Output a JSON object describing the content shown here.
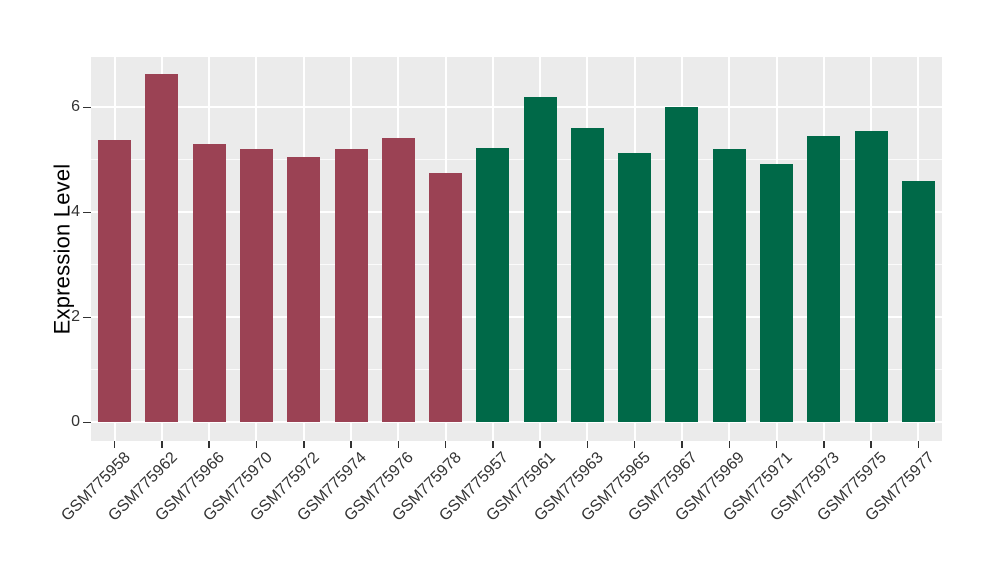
{
  "chart_data": {
    "type": "bar",
    "title": "",
    "xlabel": "",
    "ylabel": "Expression Level",
    "categories": [
      "GSM775958",
      "GSM775962",
      "GSM775966",
      "GSM775970",
      "GSM775972",
      "GSM775974",
      "GSM775976",
      "GSM775978",
      "GSM775957",
      "GSM775961",
      "GSM775963",
      "GSM775965",
      "GSM775967",
      "GSM775969",
      "GSM775971",
      "GSM775973",
      "GSM775975",
      "GSM775977"
    ],
    "values": [
      5.38,
      6.63,
      5.3,
      5.2,
      5.05,
      5.21,
      5.41,
      4.74,
      5.22,
      6.2,
      5.6,
      5.13,
      6.0,
      5.21,
      4.93,
      5.46,
      5.55,
      4.6
    ],
    "groups": [
      "red",
      "red",
      "red",
      "red",
      "red",
      "red",
      "red",
      "red",
      "green",
      "green",
      "green",
      "green",
      "green",
      "green",
      "green",
      "green",
      "green",
      "green"
    ],
    "group_colors": {
      "red": "#9B4254",
      "green": "#006948"
    },
    "yticks_major": [
      0,
      2,
      4,
      6
    ],
    "yticks_minor": [
      1,
      3,
      5
    ],
    "ylim": [
      -0.36,
      6.96
    ],
    "bar_width_ratio": 0.7,
    "grid": "on",
    "legend": "none"
  },
  "style": {
    "figure_bg": "#FFFFFF",
    "panel_bg": "#EBEBEB",
    "grid_color": "#FFFFFF",
    "axis_text_color": "#333333",
    "tick_color": "#333333",
    "axis_title_color": "#000000"
  }
}
